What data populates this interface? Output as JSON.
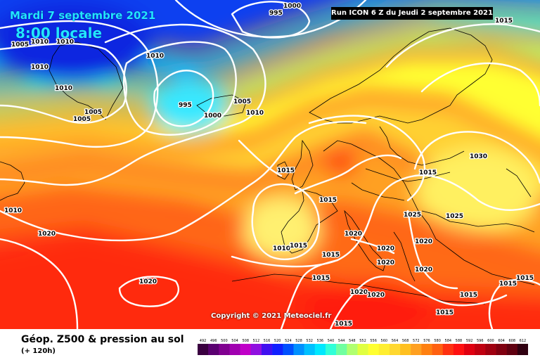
{
  "header": {
    "date": "Mardi 7 septembre 2021",
    "time": "8:00 locale",
    "run": "Run ICON 6 Z du Jeudi 2 septembre 2021"
  },
  "copyright": "Copyright © 2021 Meteociel.fr",
  "footer": {
    "title": "Géop. Z500 & pression au sol",
    "subtitle": "(+ 120h)"
  },
  "legend": {
    "ticks": [
      "492",
      "496",
      "500",
      "504",
      "508",
      "512",
      "516",
      "520",
      "524",
      "528",
      "532",
      "536",
      "540",
      "544",
      "548",
      "552",
      "556",
      "560",
      "564",
      "568",
      "572",
      "576",
      "580",
      "584",
      "588",
      "592",
      "596",
      "600",
      "604",
      "608",
      "612"
    ],
    "colors": [
      "#3a0040",
      "#5a0070",
      "#800090",
      "#a000b0",
      "#c000c8",
      "#9010e0",
      "#4010f0",
      "#1020ff",
      "#0050ff",
      "#0090ff",
      "#00c0ff",
      "#00e8ff",
      "#30ffd8",
      "#70ffa0",
      "#b0ff70",
      "#e0ff40",
      "#ffff30",
      "#ffee30",
      "#ffd830",
      "#ffc020",
      "#ffa020",
      "#ff8010",
      "#ff6010",
      "#ff3010",
      "#ff1010",
      "#e00010",
      "#c00010",
      "#a00010",
      "#800010",
      "#600010",
      "#300010"
    ]
  },
  "colors": {
    "header_text": "#22e6ff",
    "contour": "#ffffff"
  },
  "isobars": [
    {
      "label": "1005"
    },
    {
      "label": "1010"
    },
    {
      "label": "1010"
    },
    {
      "label": "1010"
    },
    {
      "label": "1010"
    },
    {
      "label": "1005"
    },
    {
      "label": "995"
    },
    {
      "label": "1000"
    },
    {
      "label": "1010"
    },
    {
      "label": "1005"
    },
    {
      "label": "995"
    },
    {
      "label": "1000"
    },
    {
      "label": "1005"
    },
    {
      "label": "1010"
    },
    {
      "label": "1015"
    },
    {
      "label": "1015"
    },
    {
      "label": "1010"
    },
    {
      "label": "1020"
    },
    {
      "label": "1020"
    },
    {
      "label": "1015"
    },
    {
      "label": "1015"
    },
    {
      "label": "1015"
    },
    {
      "label": "1020"
    },
    {
      "label": "1020"
    },
    {
      "label": "1020"
    },
    {
      "label": "1025"
    },
    {
      "label": "1025"
    },
    {
      "label": "1020"
    },
    {
      "label": "1030"
    },
    {
      "label": "1015"
    },
    {
      "label": "1010"
    },
    {
      "label": "1015"
    },
    {
      "label": "1015"
    },
    {
      "label": "1015"
    },
    {
      "label": "1020"
    },
    {
      "label": "1020"
    },
    {
      "label": "1020"
    },
    {
      "label": "1015"
    },
    {
      "label": "1015"
    },
    {
      "label": "1015"
    }
  ]
}
